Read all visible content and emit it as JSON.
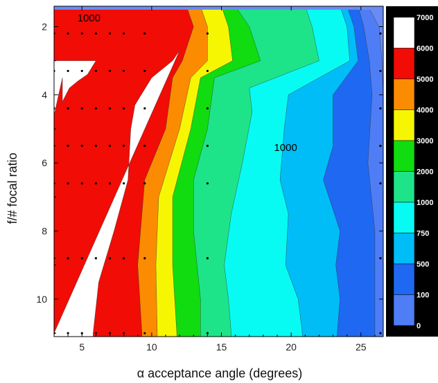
{
  "chart_data": {
    "type": "heatmap",
    "subtype": "filled-contour",
    "title": "",
    "xlabel": "α acceptance angle (degrees)",
    "ylabel": "f/# focal ratio",
    "xlim": [
      3,
      26.6
    ],
    "ylim": [
      1.4,
      11.1
    ],
    "y_inverted": true,
    "x_ticks": [
      "5",
      "10",
      "15",
      "20",
      "25"
    ],
    "y_ticks": [
      "2",
      "4",
      "6",
      "8",
      "10"
    ],
    "grid": false,
    "legend": "right",
    "levels": [
      0,
      100,
      500,
      750,
      1000,
      2000,
      3000,
      4000,
      5000,
      6000,
      7000
    ],
    "legend_labels": [
      "7000",
      "6000",
      "5000",
      "4000",
      "3000",
      "2000",
      "1000",
      "750",
      "500",
      "100",
      "0"
    ],
    "band_colors": [
      "#6a8cf2",
      "#4f7df5",
      "#1f68f2",
      "#00bdf7",
      "#07fbf3",
      "#1ee489",
      "#10dc10",
      "#f6f603",
      "#fb8c02",
      "#f10c06",
      "#ffffff"
    ],
    "contour_labels": [
      {
        "text": "1000",
        "x": 5.5,
        "y": 1.75
      },
      {
        "text": "1000",
        "x": 19.6,
        "y": 5.55
      }
    ],
    "sample_x": [
      3,
      4,
      5,
      6,
      7,
      8,
      9.5,
      14,
      26.4
    ],
    "sample_y": [
      2.2,
      3.3,
      4.4,
      5.5,
      6.6,
      8.8,
      11.0
    ],
    "band_boundaries_x": {
      "100": [
        [
          1.4,
          25.5
        ],
        [
          2.0,
          26.3
        ],
        [
          3.0,
          26.5
        ],
        [
          4.0,
          26.6
        ],
        [
          11.0,
          26.6
        ]
      ],
      "500": [
        [
          1.4,
          24.8
        ],
        [
          2.0,
          25.2
        ],
        [
          3.0,
          25.6
        ],
        [
          4.0,
          25.8
        ],
        [
          6.0,
          25.5
        ],
        [
          8.0,
          26.0
        ],
        [
          11.0,
          26.0
        ]
      ],
      "750": [
        [
          1.4,
          24.0
        ],
        [
          2.0,
          24.5
        ],
        [
          3.0,
          24.8
        ],
        [
          4.0,
          23.0
        ],
        [
          5.5,
          23.0
        ],
        [
          6.5,
          22.3
        ],
        [
          8.0,
          23.5
        ],
        [
          9.0,
          23.2
        ],
        [
          10.0,
          23.5
        ],
        [
          11.0,
          23.3
        ]
      ],
      "1000": [
        [
          1.4,
          23.5
        ],
        [
          2.0,
          24.0
        ],
        [
          3.0,
          24.2
        ],
        [
          4.0,
          19.8
        ],
        [
          5.0,
          19.5
        ],
        [
          6.5,
          19.2
        ],
        [
          7.5,
          19.8
        ],
        [
          9.0,
          19.6
        ],
        [
          10.0,
          20.5
        ],
        [
          11.0,
          20.8
        ]
      ],
      "2000": [
        [
          1.4,
          21.0
        ],
        [
          2.0,
          21.5
        ],
        [
          3.0,
          22.0
        ],
        [
          3.8,
          17.0
        ],
        [
          4.5,
          17.2
        ],
        [
          6.0,
          16.5
        ],
        [
          7.5,
          15.7
        ],
        [
          9.0,
          15.2
        ],
        [
          10.0,
          15.5
        ],
        [
          11.0,
          15.7
        ]
      ],
      "3000": [
        [
          1.4,
          16.0
        ],
        [
          2.0,
          17.0
        ],
        [
          3.0,
          17.8
        ],
        [
          3.5,
          14.5
        ],
        [
          5.0,
          14.0
        ],
        [
          6.5,
          13.0
        ],
        [
          8.0,
          13.0
        ],
        [
          10.0,
          13.5
        ],
        [
          11.0,
          13.5
        ]
      ],
      "4000": [
        [
          1.4,
          15.0
        ],
        [
          2.0,
          15.5
        ],
        [
          3.0,
          15.8
        ],
        [
          3.5,
          13.5
        ],
        [
          5.0,
          12.8
        ],
        [
          7.0,
          11.5
        ],
        [
          9.0,
          11.5
        ],
        [
          11.0,
          11.8
        ]
      ],
      "5000": [
        [
          1.4,
          13.5
        ],
        [
          2.0,
          14.0
        ],
        [
          3.0,
          14.0
        ],
        [
          3.5,
          12.8
        ],
        [
          5.0,
          12.0
        ],
        [
          7.0,
          10.5
        ],
        [
          9.0,
          10.3
        ],
        [
          11.0,
          10.4
        ]
      ],
      "6000": [
        [
          1.4,
          12.5
        ],
        [
          2.0,
          13.0
        ],
        [
          3.0,
          12.2
        ],
        [
          3.5,
          11.5
        ],
        [
          5.0,
          11.0
        ],
        [
          6.5,
          9.5
        ],
        [
          9.0,
          9.0
        ],
        [
          11.0,
          9.3
        ]
      ],
      "7000": [
        [
          2.7,
          12.0
        ],
        [
          3.0,
          11.5
        ],
        [
          3.5,
          10.0
        ],
        [
          4.3,
          8.8
        ],
        [
          5.0,
          8.5
        ],
        [
          6.5,
          8.3
        ],
        [
          8.0,
          7.3
        ],
        [
          9.5,
          6.2
        ],
        [
          11.0,
          5.8
        ]
      ]
    },
    "white_region_top": [
      [
        3.0,
        6.0
      ],
      [
        3.4,
        5.4
      ],
      [
        3.6,
        4.7
      ],
      [
        3.8,
        4.1
      ],
      [
        4.2,
        3.6
      ]
    ],
    "white_region_left_start": [
      [
        3.5,
        3.6
      ],
      [
        4.6,
        3.0
      ],
      [
        4.7,
        3.0
      ],
      [
        11.0,
        3.0
      ]
    ]
  }
}
